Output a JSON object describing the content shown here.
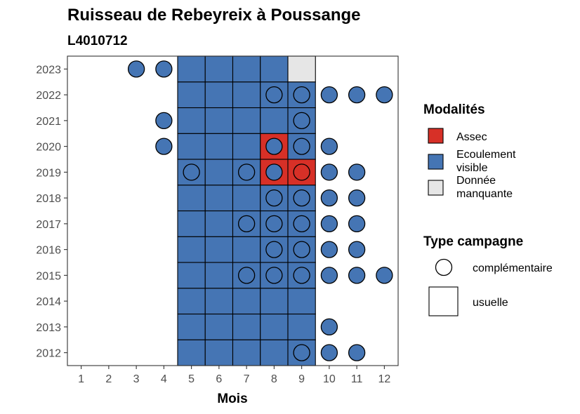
{
  "chart_data": {
    "type": "heatmap",
    "title": "Ruisseau de Rebeyreix à Poussange",
    "subtitle": "L4010712",
    "xlabel": "Mois",
    "ylabel": "",
    "x_categories": [
      "1",
      "2",
      "3",
      "4",
      "5",
      "6",
      "7",
      "8",
      "9",
      "10",
      "11",
      "12"
    ],
    "y_categories": [
      "2012",
      "2013",
      "2014",
      "2015",
      "2016",
      "2017",
      "2018",
      "2019",
      "2020",
      "2021",
      "2022",
      "2023"
    ],
    "colors": {
      "Assec": "#d73027",
      "Ecoulement visible": "#4575b4",
      "Donnée manquante": "#e6e6e6"
    },
    "cells": [
      {
        "year": 2012,
        "month": 5,
        "modalite": "Ecoulement visible",
        "campagne": "usuelle"
      },
      {
        "year": 2012,
        "month": 6,
        "modalite": "Ecoulement visible",
        "campagne": "usuelle"
      },
      {
        "year": 2012,
        "month": 7,
        "modalite": "Ecoulement visible",
        "campagne": "usuelle"
      },
      {
        "year": 2012,
        "month": 8,
        "modalite": "Ecoulement visible",
        "campagne": "usuelle"
      },
      {
        "year": 2012,
        "month": 9,
        "modalite": "Ecoulement visible",
        "campagne": "usuelle"
      },
      {
        "year": 2012,
        "month": 9,
        "modalite": "Ecoulement visible",
        "campagne": "complémentaire"
      },
      {
        "year": 2012,
        "month": 10,
        "modalite": "Ecoulement visible",
        "campagne": "complémentaire"
      },
      {
        "year": 2012,
        "month": 11,
        "modalite": "Ecoulement visible",
        "campagne": "complémentaire"
      },
      {
        "year": 2013,
        "month": 5,
        "modalite": "Ecoulement visible",
        "campagne": "usuelle"
      },
      {
        "year": 2013,
        "month": 6,
        "modalite": "Ecoulement visible",
        "campagne": "usuelle"
      },
      {
        "year": 2013,
        "month": 7,
        "modalite": "Ecoulement visible",
        "campagne": "usuelle"
      },
      {
        "year": 2013,
        "month": 8,
        "modalite": "Ecoulement visible",
        "campagne": "usuelle"
      },
      {
        "year": 2013,
        "month": 9,
        "modalite": "Ecoulement visible",
        "campagne": "usuelle"
      },
      {
        "year": 2013,
        "month": 10,
        "modalite": "Ecoulement visible",
        "campagne": "complémentaire"
      },
      {
        "year": 2014,
        "month": 5,
        "modalite": "Ecoulement visible",
        "campagne": "usuelle"
      },
      {
        "year": 2014,
        "month": 6,
        "modalite": "Ecoulement visible",
        "campagne": "usuelle"
      },
      {
        "year": 2014,
        "month": 7,
        "modalite": "Ecoulement visible",
        "campagne": "usuelle"
      },
      {
        "year": 2014,
        "month": 8,
        "modalite": "Ecoulement visible",
        "campagne": "usuelle"
      },
      {
        "year": 2014,
        "month": 9,
        "modalite": "Ecoulement visible",
        "campagne": "usuelle"
      },
      {
        "year": 2015,
        "month": 5,
        "modalite": "Ecoulement visible",
        "campagne": "usuelle"
      },
      {
        "year": 2015,
        "month": 6,
        "modalite": "Ecoulement visible",
        "campagne": "usuelle"
      },
      {
        "year": 2015,
        "month": 7,
        "modalite": "Ecoulement visible",
        "campagne": "usuelle"
      },
      {
        "year": 2015,
        "month": 8,
        "modalite": "Ecoulement visible",
        "campagne": "usuelle"
      },
      {
        "year": 2015,
        "month": 9,
        "modalite": "Ecoulement visible",
        "campagne": "usuelle"
      },
      {
        "year": 2015,
        "month": 7,
        "modalite": "Ecoulement visible",
        "campagne": "complémentaire"
      },
      {
        "year": 2015,
        "month": 8,
        "modalite": "Ecoulement visible",
        "campagne": "complémentaire"
      },
      {
        "year": 2015,
        "month": 9,
        "modalite": "Ecoulement visible",
        "campagne": "complémentaire"
      },
      {
        "year": 2015,
        "month": 10,
        "modalite": "Ecoulement visible",
        "campagne": "complémentaire"
      },
      {
        "year": 2015,
        "month": 11,
        "modalite": "Ecoulement visible",
        "campagne": "complémentaire"
      },
      {
        "year": 2015,
        "month": 12,
        "modalite": "Ecoulement visible",
        "campagne": "complémentaire"
      },
      {
        "year": 2016,
        "month": 5,
        "modalite": "Ecoulement visible",
        "campagne": "usuelle"
      },
      {
        "year": 2016,
        "month": 6,
        "modalite": "Ecoulement visible",
        "campagne": "usuelle"
      },
      {
        "year": 2016,
        "month": 7,
        "modalite": "Ecoulement visible",
        "campagne": "usuelle"
      },
      {
        "year": 2016,
        "month": 8,
        "modalite": "Ecoulement visible",
        "campagne": "usuelle"
      },
      {
        "year": 2016,
        "month": 9,
        "modalite": "Ecoulement visible",
        "campagne": "usuelle"
      },
      {
        "year": 2016,
        "month": 8,
        "modalite": "Ecoulement visible",
        "campagne": "complémentaire"
      },
      {
        "year": 2016,
        "month": 9,
        "modalite": "Ecoulement visible",
        "campagne": "complémentaire"
      },
      {
        "year": 2016,
        "month": 10,
        "modalite": "Ecoulement visible",
        "campagne": "complémentaire"
      },
      {
        "year": 2016,
        "month": 11,
        "modalite": "Ecoulement visible",
        "campagne": "complémentaire"
      },
      {
        "year": 2017,
        "month": 5,
        "modalite": "Ecoulement visible",
        "campagne": "usuelle"
      },
      {
        "year": 2017,
        "month": 6,
        "modalite": "Ecoulement visible",
        "campagne": "usuelle"
      },
      {
        "year": 2017,
        "month": 7,
        "modalite": "Ecoulement visible",
        "campagne": "usuelle"
      },
      {
        "year": 2017,
        "month": 8,
        "modalite": "Ecoulement visible",
        "campagne": "usuelle"
      },
      {
        "year": 2017,
        "month": 9,
        "modalite": "Ecoulement visible",
        "campagne": "usuelle"
      },
      {
        "year": 2017,
        "month": 7,
        "modalite": "Ecoulement visible",
        "campagne": "complémentaire"
      },
      {
        "year": 2017,
        "month": 8,
        "modalite": "Ecoulement visible",
        "campagne": "complémentaire"
      },
      {
        "year": 2017,
        "month": 9,
        "modalite": "Ecoulement visible",
        "campagne": "complémentaire"
      },
      {
        "year": 2017,
        "month": 10,
        "modalite": "Ecoulement visible",
        "campagne": "complémentaire"
      },
      {
        "year": 2017,
        "month": 11,
        "modalite": "Ecoulement visible",
        "campagne": "complémentaire"
      },
      {
        "year": 2018,
        "month": 5,
        "modalite": "Ecoulement visible",
        "campagne": "usuelle"
      },
      {
        "year": 2018,
        "month": 6,
        "modalite": "Ecoulement visible",
        "campagne": "usuelle"
      },
      {
        "year": 2018,
        "month": 7,
        "modalite": "Ecoulement visible",
        "campagne": "usuelle"
      },
      {
        "year": 2018,
        "month": 8,
        "modalite": "Ecoulement visible",
        "campagne": "usuelle"
      },
      {
        "year": 2018,
        "month": 9,
        "modalite": "Ecoulement visible",
        "campagne": "usuelle"
      },
      {
        "year": 2018,
        "month": 8,
        "modalite": "Ecoulement visible",
        "campagne": "complémentaire"
      },
      {
        "year": 2018,
        "month": 9,
        "modalite": "Ecoulement visible",
        "campagne": "complémentaire"
      },
      {
        "year": 2018,
        "month": 10,
        "modalite": "Ecoulement visible",
        "campagne": "complémentaire"
      },
      {
        "year": 2018,
        "month": 11,
        "modalite": "Ecoulement visible",
        "campagne": "complémentaire"
      },
      {
        "year": 2019,
        "month": 5,
        "modalite": "Ecoulement visible",
        "campagne": "usuelle"
      },
      {
        "year": 2019,
        "month": 6,
        "modalite": "Ecoulement visible",
        "campagne": "usuelle"
      },
      {
        "year": 2019,
        "month": 7,
        "modalite": "Ecoulement visible",
        "campagne": "usuelle"
      },
      {
        "year": 2019,
        "month": 8,
        "modalite": "Assec",
        "campagne": "usuelle"
      },
      {
        "year": 2019,
        "month": 9,
        "modalite": "Assec",
        "campagne": "usuelle"
      },
      {
        "year": 2019,
        "month": 5,
        "modalite": "Ecoulement visible",
        "campagne": "complémentaire"
      },
      {
        "year": 2019,
        "month": 7,
        "modalite": "Ecoulement visible",
        "campagne": "complémentaire"
      },
      {
        "year": 2019,
        "month": 8,
        "modalite": "Ecoulement visible",
        "campagne": "complémentaire"
      },
      {
        "year": 2019,
        "month": 9,
        "modalite": "Assec",
        "campagne": "complémentaire"
      },
      {
        "year": 2019,
        "month": 10,
        "modalite": "Ecoulement visible",
        "campagne": "complémentaire"
      },
      {
        "year": 2019,
        "month": 11,
        "modalite": "Ecoulement visible",
        "campagne": "complémentaire"
      },
      {
        "year": 2020,
        "month": 5,
        "modalite": "Ecoulement visible",
        "campagne": "usuelle"
      },
      {
        "year": 2020,
        "month": 6,
        "modalite": "Ecoulement visible",
        "campagne": "usuelle"
      },
      {
        "year": 2020,
        "month": 7,
        "modalite": "Ecoulement visible",
        "campagne": "usuelle"
      },
      {
        "year": 2020,
        "month": 8,
        "modalite": "Assec",
        "campagne": "usuelle"
      },
      {
        "year": 2020,
        "month": 9,
        "modalite": "Ecoulement visible",
        "campagne": "usuelle"
      },
      {
        "year": 2020,
        "month": 4,
        "modalite": "Ecoulement visible",
        "campagne": "complémentaire"
      },
      {
        "year": 2020,
        "month": 8,
        "modalite": "Ecoulement visible",
        "campagne": "complémentaire"
      },
      {
        "year": 2020,
        "month": 9,
        "modalite": "Ecoulement visible",
        "campagne": "complémentaire"
      },
      {
        "year": 2020,
        "month": 10,
        "modalite": "Ecoulement visible",
        "campagne": "complémentaire"
      },
      {
        "year": 2021,
        "month": 5,
        "modalite": "Ecoulement visible",
        "campagne": "usuelle"
      },
      {
        "year": 2021,
        "month": 6,
        "modalite": "Ecoulement visible",
        "campagne": "usuelle"
      },
      {
        "year": 2021,
        "month": 7,
        "modalite": "Ecoulement visible",
        "campagne": "usuelle"
      },
      {
        "year": 2021,
        "month": 8,
        "modalite": "Ecoulement visible",
        "campagne": "usuelle"
      },
      {
        "year": 2021,
        "month": 9,
        "modalite": "Ecoulement visible",
        "campagne": "usuelle"
      },
      {
        "year": 2021,
        "month": 4,
        "modalite": "Ecoulement visible",
        "campagne": "complémentaire"
      },
      {
        "year": 2021,
        "month": 9,
        "modalite": "Ecoulement visible",
        "campagne": "complémentaire"
      },
      {
        "year": 2022,
        "month": 5,
        "modalite": "Ecoulement visible",
        "campagne": "usuelle"
      },
      {
        "year": 2022,
        "month": 6,
        "modalite": "Ecoulement visible",
        "campagne": "usuelle"
      },
      {
        "year": 2022,
        "month": 7,
        "modalite": "Ecoulement visible",
        "campagne": "usuelle"
      },
      {
        "year": 2022,
        "month": 8,
        "modalite": "Ecoulement visible",
        "campagne": "usuelle"
      },
      {
        "year": 2022,
        "month": 9,
        "modalite": "Ecoulement visible",
        "campagne": "usuelle"
      },
      {
        "year": 2022,
        "month": 8,
        "modalite": "Ecoulement visible",
        "campagne": "complémentaire"
      },
      {
        "year": 2022,
        "month": 9,
        "modalite": "Ecoulement visible",
        "campagne": "complémentaire"
      },
      {
        "year": 2022,
        "month": 10,
        "modalite": "Ecoulement visible",
        "campagne": "complémentaire"
      },
      {
        "year": 2022,
        "month": 11,
        "modalite": "Ecoulement visible",
        "campagne": "complémentaire"
      },
      {
        "year": 2022,
        "month": 12,
        "modalite": "Ecoulement visible",
        "campagne": "complémentaire"
      },
      {
        "year": 2023,
        "month": 5,
        "modalite": "Ecoulement visible",
        "campagne": "usuelle"
      },
      {
        "year": 2023,
        "month": 6,
        "modalite": "Ecoulement visible",
        "campagne": "usuelle"
      },
      {
        "year": 2023,
        "month": 7,
        "modalite": "Ecoulement visible",
        "campagne": "usuelle"
      },
      {
        "year": 2023,
        "month": 8,
        "modalite": "Ecoulement visible",
        "campagne": "usuelle"
      },
      {
        "year": 2023,
        "month": 9,
        "modalite": "Donnée manquante",
        "campagne": "usuelle"
      },
      {
        "year": 2023,
        "month": 3,
        "modalite": "Ecoulement visible",
        "campagne": "complémentaire"
      },
      {
        "year": 2023,
        "month": 4,
        "modalite": "Ecoulement visible",
        "campagne": "complémentaire"
      }
    ],
    "legends": [
      {
        "title": "Modalités",
        "items": [
          {
            "key": "Assec",
            "lines": [
              "Assec"
            ]
          },
          {
            "key": "Ecoulement visible",
            "lines": [
              "Ecoulement",
              "visible"
            ]
          },
          {
            "key": "Donnée manquante",
            "lines": [
              "Donnée",
              "manquante"
            ]
          }
        ]
      },
      {
        "title": "Type campagne",
        "items": [
          {
            "key": "complémentaire",
            "label": "complémentaire",
            "shape": "circle"
          },
          {
            "key": "usuelle",
            "label": "usuelle",
            "shape": "square"
          }
        ]
      }
    ],
    "grid": false,
    "legend_position": "right"
  }
}
